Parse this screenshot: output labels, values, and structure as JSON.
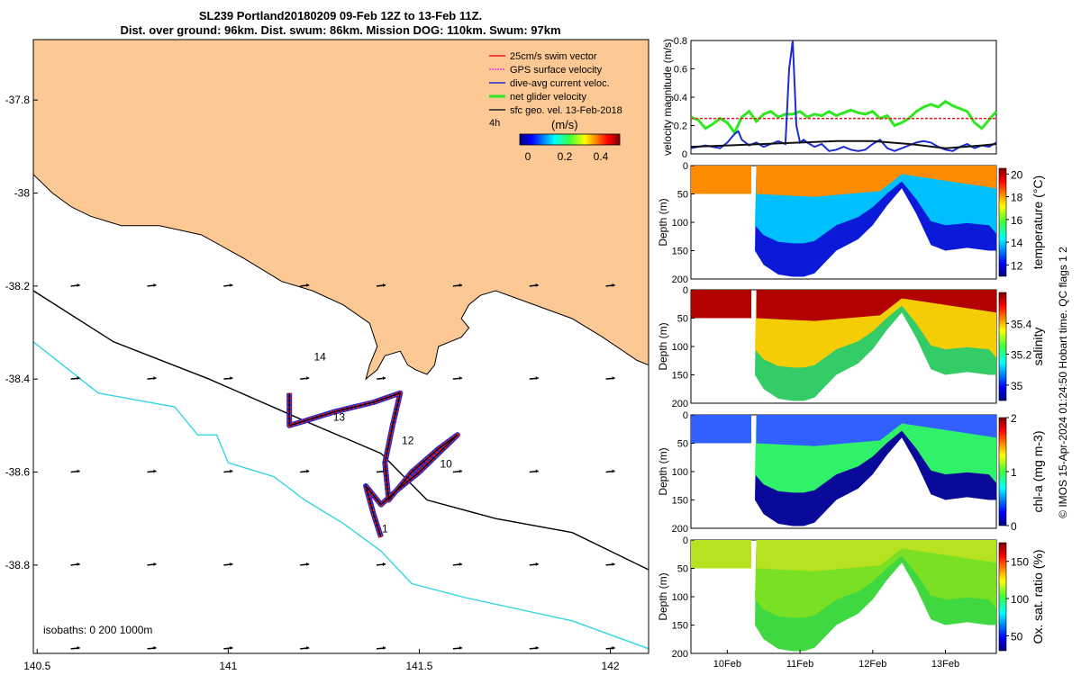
{
  "title": {
    "line1": "SL239 Portland20180209 09-Feb 12Z to 13-Feb 11Z.",
    "line2": "Dist. over ground: 96km. Dist. swum: 86km. Mission DOG: 110km. Swum: 97km"
  },
  "chart_data": [
    {
      "type": "map",
      "name": "glider track map",
      "xlim": [
        140.49,
        142.1
      ],
      "ylim": [
        -38.99,
        -37.67
      ],
      "xticks": [
        140.5,
        141,
        141.5,
        142
      ],
      "xtick_labels": [
        "140.5",
        "141",
        "141.5",
        "142"
      ],
      "yticks": [
        -37.8,
        -38,
        -38.2,
        -38.4,
        -38.6,
        -38.8
      ],
      "ytick_labels": [
        "-37.8",
        "-38",
        "-38.2",
        "-38.4",
        "-38.6",
        "-38.8"
      ],
      "legend": [
        {
          "label": "25cm/s swim vector",
          "color": "#e8151b"
        },
        {
          "label": "GPS surface velocity",
          "color": "#e833e8"
        },
        {
          "label": "dive-avg current veloc.",
          "color": "#1d2bd1"
        },
        {
          "label": "net glider velocity",
          "color": "#2ee81f"
        },
        {
          "label": "sfc geo. vel. 13-Feb-2018",
          "color": "#222222"
        }
      ],
      "legend_extra": "4h",
      "colorbar_title": "(m/s)",
      "colorbar_ticks": [
        "0",
        "0.2",
        "0.4"
      ],
      "isobath_note": "isobaths: 0   200  1000m",
      "track_labels": [
        {
          "text": "14",
          "lon": 141.24,
          "lat": -38.36
        },
        {
          "text": "13",
          "lon": 141.29,
          "lat": -38.49
        },
        {
          "text": "12",
          "lon": 141.47,
          "lat": -38.54
        },
        {
          "text": "10",
          "lon": 141.57,
          "lat": -38.59
        },
        {
          "text": "1",
          "lon": 141.41,
          "lat": -38.73
        }
      ],
      "track": [
        [
          141.4,
          -38.74
        ],
        [
          141.38,
          -38.69
        ],
        [
          141.36,
          -38.63
        ],
        [
          141.4,
          -38.67
        ],
        [
          141.44,
          -38.64
        ],
        [
          141.5,
          -38.6
        ],
        [
          141.55,
          -38.56
        ],
        [
          141.6,
          -38.52
        ],
        [
          141.55,
          -38.55
        ],
        [
          141.48,
          -38.6
        ],
        [
          141.42,
          -38.66
        ],
        [
          141.41,
          -38.58
        ],
        [
          141.43,
          -38.5
        ],
        [
          141.45,
          -38.43
        ],
        [
          141.38,
          -38.45
        ],
        [
          141.28,
          -38.47
        ],
        [
          141.2,
          -38.49
        ],
        [
          141.16,
          -38.5
        ],
        [
          141.16,
          -38.43
        ]
      ],
      "coast": [
        [
          140.49,
          -37.67
        ],
        [
          142.1,
          -37.67
        ],
        [
          142.1,
          -38.37
        ],
        [
          142.07,
          -38.36
        ],
        [
          141.98,
          -38.31
        ],
        [
          141.9,
          -38.27
        ],
        [
          141.8,
          -38.24
        ],
        [
          141.7,
          -38.21
        ],
        [
          141.66,
          -38.22
        ],
        [
          141.63,
          -38.24
        ],
        [
          141.61,
          -38.27
        ],
        [
          141.63,
          -38.29
        ],
        [
          141.61,
          -38.31
        ],
        [
          141.58,
          -38.32
        ],
        [
          141.55,
          -38.33
        ],
        [
          141.54,
          -38.37
        ],
        [
          141.52,
          -38.39
        ],
        [
          141.49,
          -38.38
        ],
        [
          141.47,
          -38.37
        ],
        [
          141.45,
          -38.34
        ],
        [
          141.41,
          -38.35
        ],
        [
          141.39,
          -38.38
        ],
        [
          141.36,
          -38.4
        ],
        [
          141.37,
          -38.37
        ],
        [
          141.39,
          -38.33
        ],
        [
          141.37,
          -38.28
        ],
        [
          141.3,
          -38.24
        ],
        [
          141.22,
          -38.21
        ],
        [
          141.14,
          -38.19
        ],
        [
          141.04,
          -38.14
        ],
        [
          140.93,
          -38.09
        ],
        [
          140.82,
          -38.07
        ],
        [
          140.72,
          -38.07
        ],
        [
          140.64,
          -38.05
        ],
        [
          140.59,
          -38.03
        ],
        [
          140.54,
          -38.0
        ],
        [
          140.49,
          -37.96
        ]
      ],
      "isobath_200": [
        [
          140.49,
          -38.21
        ],
        [
          140.7,
          -38.32
        ],
        [
          140.95,
          -38.4
        ],
        [
          141.2,
          -38.49
        ],
        [
          141.4,
          -38.56
        ],
        [
          141.52,
          -38.66
        ],
        [
          141.7,
          -38.7
        ],
        [
          141.9,
          -38.73
        ],
        [
          142.1,
          -38.81
        ]
      ],
      "isobath_1000": [
        [
          140.49,
          -38.32
        ],
        [
          140.66,
          -38.43
        ],
        [
          140.86,
          -38.46
        ],
        [
          140.92,
          -38.52
        ],
        [
          140.97,
          -38.52
        ],
        [
          141.0,
          -38.58
        ],
        [
          141.12,
          -38.61
        ],
        [
          141.2,
          -38.66
        ],
        [
          141.3,
          -38.71
        ],
        [
          141.4,
          -38.77
        ],
        [
          141.48,
          -38.84
        ],
        [
          141.62,
          -38.87
        ],
        [
          141.9,
          -38.92
        ],
        [
          142.1,
          -38.98
        ]
      ],
      "vector_grid": {
        "lons": [
          140.6,
          140.8,
          141.0,
          141.2,
          141.4,
          141.6,
          141.8,
          142.0
        ],
        "lats": [
          -38.2,
          -38.4,
          -38.6,
          -38.8,
          -38.98
        ]
      }
    },
    {
      "type": "line",
      "name": "velocity magnitude",
      "ylabel": "velocity magnitude (m/s)",
      "xlim": [
        9.5,
        13.7
      ],
      "ylim": [
        0,
        0.8
      ],
      "yticks": [
        0,
        0.2,
        0.4,
        0.6,
        0.8
      ],
      "ytick_labels": [
        "0",
        "0.2",
        "0.4",
        "0.6",
        "0.8"
      ],
      "series": [
        {
          "name": "net glider velocity",
          "color": "#2ee81f",
          "x": [
            9.5,
            9.6,
            9.7,
            9.8,
            9.9,
            10.0,
            10.1,
            10.2,
            10.3,
            10.4,
            10.5,
            10.6,
            10.7,
            10.8,
            10.9,
            11.0,
            11.1,
            11.2,
            11.3,
            11.4,
            11.5,
            11.6,
            11.7,
            11.8,
            11.9,
            12.0,
            12.1,
            12.2,
            12.3,
            12.4,
            12.5,
            12.6,
            12.7,
            12.8,
            12.9,
            13.0,
            13.1,
            13.2,
            13.3,
            13.4,
            13.5,
            13.6,
            13.7
          ],
          "values": [
            0.26,
            0.24,
            0.18,
            0.21,
            0.25,
            0.22,
            0.15,
            0.26,
            0.3,
            0.23,
            0.28,
            0.3,
            0.26,
            0.28,
            0.28,
            0.3,
            0.26,
            0.28,
            0.27,
            0.3,
            0.27,
            0.29,
            0.31,
            0.29,
            0.28,
            0.3,
            0.25,
            0.27,
            0.2,
            0.22,
            0.25,
            0.3,
            0.33,
            0.35,
            0.33,
            0.37,
            0.34,
            0.32,
            0.3,
            0.22,
            0.18,
            0.24,
            0.3
          ]
        },
        {
          "name": "swim vector",
          "color": "#e8151b",
          "x": [
            9.5,
            13.7
          ],
          "values": [
            0.25,
            0.25
          ]
        },
        {
          "name": "dive-avg current",
          "color": "#1d2bd1",
          "x": [
            9.5,
            9.6,
            9.7,
            9.8,
            9.9,
            10.0,
            10.1,
            10.15,
            10.2,
            10.3,
            10.4,
            10.5,
            10.6,
            10.7,
            10.8,
            10.85,
            10.9,
            10.95,
            11.0,
            11.05,
            11.1,
            11.2,
            11.3,
            11.4,
            11.5,
            11.6,
            11.7,
            11.8,
            11.9,
            12.0,
            12.1,
            12.2,
            12.3,
            12.4,
            12.5,
            12.6,
            12.7,
            12.8,
            12.9,
            13.0,
            13.1,
            13.2,
            13.3,
            13.4,
            13.5,
            13.6,
            13.7
          ],
          "values": [
            0.04,
            0.05,
            0.06,
            0.05,
            0.04,
            0.08,
            0.14,
            0.16,
            0.1,
            0.06,
            0.08,
            0.05,
            0.07,
            0.09,
            0.07,
            0.6,
            0.8,
            0.2,
            0.08,
            0.1,
            0.08,
            0.05,
            0.07,
            0.02,
            0.03,
            0.05,
            0.03,
            0.02,
            0.03,
            0.07,
            0.1,
            0.04,
            0.02,
            0.04,
            0.06,
            0.08,
            0.09,
            0.08,
            0.05,
            0.03,
            0.02,
            0.05,
            0.07,
            0.04,
            0.06,
            0.05,
            0.08
          ]
        },
        {
          "name": "sfc geo. vel.",
          "color": "#111111",
          "x": [
            9.5,
            10.0,
            10.5,
            11.0,
            11.5,
            12.0,
            12.5,
            13.0,
            13.5,
            13.7
          ],
          "values": [
            0.05,
            0.06,
            0.07,
            0.08,
            0.09,
            0.09,
            0.07,
            0.04,
            0.06,
            0.07
          ]
        }
      ]
    },
    {
      "type": "heatmap",
      "name": "temperature",
      "ylabel": "Depth (m)",
      "colorbar_label": "temperature (°C)",
      "colorbar_range": [
        11,
        20.5
      ],
      "colorbar_ticks": [
        "12",
        "14",
        "16",
        "18",
        "20"
      ],
      "yticks": [
        "0",
        "50",
        "100",
        "150",
        "200"
      ]
    },
    {
      "type": "heatmap",
      "name": "salinity",
      "ylabel": "Depth (m)",
      "colorbar_label": "salinity",
      "colorbar_range": [
        34.9,
        35.6
      ],
      "colorbar_ticks": [
        "35",
        "35.2",
        "35.4"
      ],
      "yticks": [
        "0",
        "50",
        "100",
        "150",
        "200"
      ]
    },
    {
      "type": "heatmap",
      "name": "chl-a",
      "ylabel": "Depth (m)",
      "colorbar_label": "chl-a (mg m-3)",
      "colorbar_range": [
        0,
        2
      ],
      "colorbar_ticks": [
        "0",
        "1",
        "2"
      ],
      "yticks": [
        "0",
        "50",
        "100",
        "150",
        "200"
      ]
    },
    {
      "type": "heatmap",
      "name": "oxygen saturation",
      "ylabel": "Depth (m)",
      "colorbar_label": "Ox. sat. ratio (%)",
      "colorbar_range": [
        30,
        175
      ],
      "colorbar_ticks": [
        "50",
        "100",
        "150"
      ],
      "yticks": [
        "0",
        "50",
        "100",
        "150",
        "200"
      ],
      "xlim": [
        9.5,
        13.7
      ],
      "xtick_labels": [
        "10Feb",
        "11Feb",
        "12Feb",
        "13Feb"
      ]
    }
  ],
  "side_note": "© IMOS 15-Apr-2024 01:24:50 Hobart time. QC flags 1  2"
}
